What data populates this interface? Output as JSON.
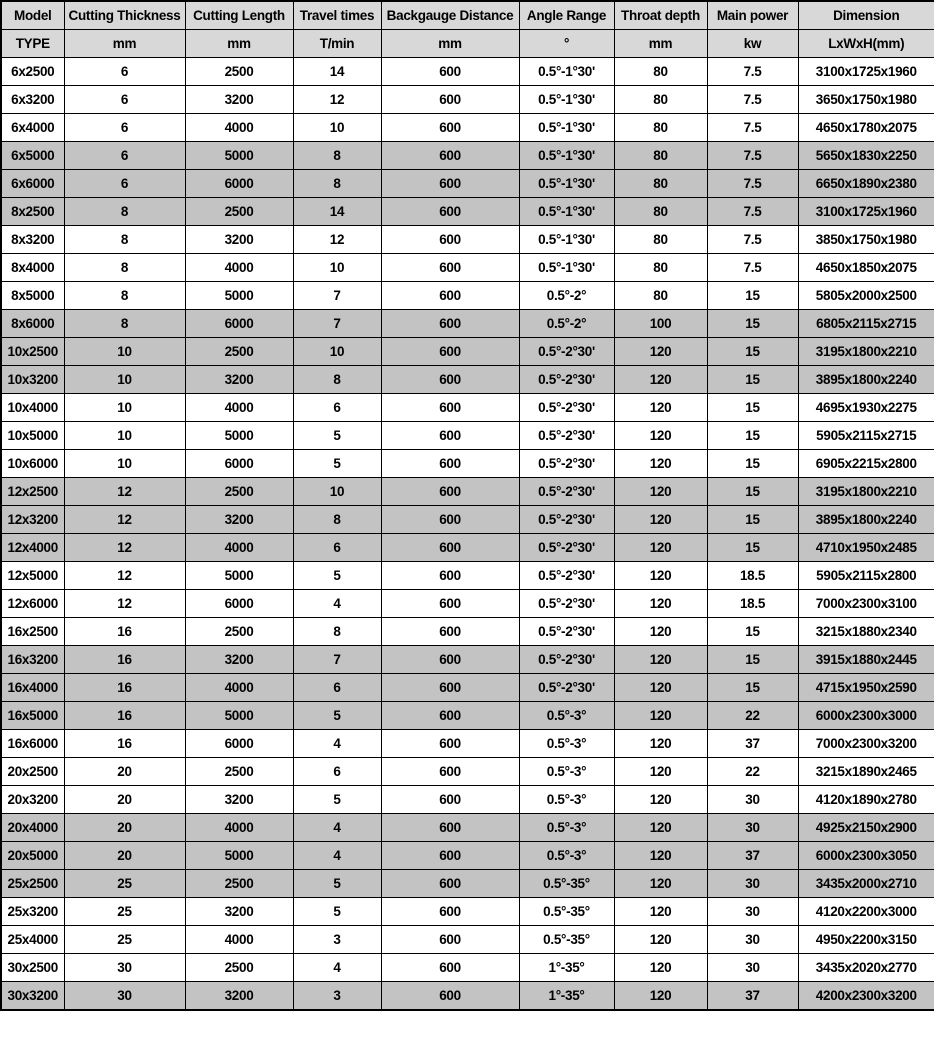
{
  "colors": {
    "header_bg": "#d8d8d8",
    "shaded_row_bg": "#c3c3c3",
    "plain_row_bg": "#ffffff",
    "border": "#000000",
    "text": "#000000"
  },
  "table": {
    "columns": [
      {
        "label": "Model",
        "unit": "TYPE"
      },
      {
        "label": "Cutting Thickness",
        "unit": "mm"
      },
      {
        "label": "Cutting Length",
        "unit": "mm"
      },
      {
        "label": "Travel times",
        "unit": "T/min"
      },
      {
        "label": "Backgauge Distance",
        "unit": "mm"
      },
      {
        "label": "Angle Range",
        "unit": "°"
      },
      {
        "label": "Throat depth",
        "unit": "mm"
      },
      {
        "label": "Main power",
        "unit": "kw"
      },
      {
        "label": "Dimension",
        "unit": "LxWxH(mm)"
      }
    ],
    "rows": [
      {
        "cells": [
          "6x2500",
          "6",
          "2500",
          "14",
          "600",
          "0.5°-1°30'",
          "80",
          "7.5",
          "3100x1725x1960"
        ],
        "shaded": false
      },
      {
        "cells": [
          "6x3200",
          "6",
          "3200",
          "12",
          "600",
          "0.5°-1°30'",
          "80",
          "7.5",
          "3650x1750x1980"
        ],
        "shaded": false
      },
      {
        "cells": [
          "6x4000",
          "6",
          "4000",
          "10",
          "600",
          "0.5°-1°30'",
          "80",
          "7.5",
          "4650x1780x2075"
        ],
        "shaded": false
      },
      {
        "cells": [
          "6x5000",
          "6",
          "5000",
          "8",
          "600",
          "0.5°-1°30'",
          "80",
          "7.5",
          "5650x1830x2250"
        ],
        "shaded": true
      },
      {
        "cells": [
          "6x6000",
          "6",
          "6000",
          "8",
          "600",
          "0.5°-1°30'",
          "80",
          "7.5",
          "6650x1890x2380"
        ],
        "shaded": true
      },
      {
        "cells": [
          "8x2500",
          "8",
          "2500",
          "14",
          "600",
          "0.5°-1°30'",
          "80",
          "7.5",
          "3100x1725x1960"
        ],
        "shaded": true
      },
      {
        "cells": [
          "8x3200",
          "8",
          "3200",
          "12",
          "600",
          "0.5°-1°30'",
          "80",
          "7.5",
          "3850x1750x1980"
        ],
        "shaded": false
      },
      {
        "cells": [
          "8x4000",
          "8",
          "4000",
          "10",
          "600",
          "0.5°-1°30'",
          "80",
          "7.5",
          "4650x1850x2075"
        ],
        "shaded": false
      },
      {
        "cells": [
          "8x5000",
          "8",
          "5000",
          "7",
          "600",
          "0.5°-2°",
          "80",
          "15",
          "5805x2000x2500"
        ],
        "shaded": false
      },
      {
        "cells": [
          "8x6000",
          "8",
          "6000",
          "7",
          "600",
          "0.5°-2°",
          "100",
          "15",
          "6805x2115x2715"
        ],
        "shaded": true
      },
      {
        "cells": [
          "10x2500",
          "10",
          "2500",
          "10",
          "600",
          "0.5°-2°30'",
          "120",
          "15",
          "3195x1800x2210"
        ],
        "shaded": true
      },
      {
        "cells": [
          "10x3200",
          "10",
          "3200",
          "8",
          "600",
          "0.5°-2°30'",
          "120",
          "15",
          "3895x1800x2240"
        ],
        "shaded": true
      },
      {
        "cells": [
          "10x4000",
          "10",
          "4000",
          "6",
          "600",
          "0.5°-2°30'",
          "120",
          "15",
          "4695x1930x2275"
        ],
        "shaded": false
      },
      {
        "cells": [
          "10x5000",
          "10",
          "5000",
          "5",
          "600",
          "0.5°-2°30'",
          "120",
          "15",
          "5905x2115x2715"
        ],
        "shaded": false
      },
      {
        "cells": [
          "10x6000",
          "10",
          "6000",
          "5",
          "600",
          "0.5°-2°30'",
          "120",
          "15",
          "6905x2215x2800"
        ],
        "shaded": false
      },
      {
        "cells": [
          "12x2500",
          "12",
          "2500",
          "10",
          "600",
          "0.5°-2°30'",
          "120",
          "15",
          "3195x1800x2210"
        ],
        "shaded": true
      },
      {
        "cells": [
          "12x3200",
          "12",
          "3200",
          "8",
          "600",
          "0.5°-2°30'",
          "120",
          "15",
          "3895x1800x2240"
        ],
        "shaded": true
      },
      {
        "cells": [
          "12x4000",
          "12",
          "4000",
          "6",
          "600",
          "0.5°-2°30'",
          "120",
          "15",
          "4710x1950x2485"
        ],
        "shaded": true
      },
      {
        "cells": [
          "12x5000",
          "12",
          "5000",
          "5",
          "600",
          "0.5°-2°30'",
          "120",
          "18.5",
          "5905x2115x2800"
        ],
        "shaded": false
      },
      {
        "cells": [
          "12x6000",
          "12",
          "6000",
          "4",
          "600",
          "0.5°-2°30'",
          "120",
          "18.5",
          "7000x2300x3100"
        ],
        "shaded": false
      },
      {
        "cells": [
          "16x2500",
          "16",
          "2500",
          "8",
          "600",
          "0.5°-2°30'",
          "120",
          "15",
          "3215x1880x2340"
        ],
        "shaded": false
      },
      {
        "cells": [
          "16x3200",
          "16",
          "3200",
          "7",
          "600",
          "0.5°-2°30'",
          "120",
          "15",
          "3915x1880x2445"
        ],
        "shaded": true
      },
      {
        "cells": [
          "16x4000",
          "16",
          "4000",
          "6",
          "600",
          "0.5°-2°30'",
          "120",
          "15",
          "4715x1950x2590"
        ],
        "shaded": true
      },
      {
        "cells": [
          "16x5000",
          "16",
          "5000",
          "5",
          "600",
          "0.5°-3°",
          "120",
          "22",
          "6000x2300x3000"
        ],
        "shaded": true
      },
      {
        "cells": [
          "16x6000",
          "16",
          "6000",
          "4",
          "600",
          "0.5°-3°",
          "120",
          "37",
          "7000x2300x3200"
        ],
        "shaded": false
      },
      {
        "cells": [
          "20x2500",
          "20",
          "2500",
          "6",
          "600",
          "0.5°-3°",
          "120",
          "22",
          "3215x1890x2465"
        ],
        "shaded": false
      },
      {
        "cells": [
          "20x3200",
          "20",
          "3200",
          "5",
          "600",
          "0.5°-3°",
          "120",
          "30",
          "4120x1890x2780"
        ],
        "shaded": false
      },
      {
        "cells": [
          "20x4000",
          "20",
          "4000",
          "4",
          "600",
          "0.5°-3°",
          "120",
          "30",
          "4925x2150x2900"
        ],
        "shaded": true
      },
      {
        "cells": [
          "20x5000",
          "20",
          "5000",
          "4",
          "600",
          "0.5°-3°",
          "120",
          "37",
          "6000x2300x3050"
        ],
        "shaded": true
      },
      {
        "cells": [
          "25x2500",
          "25",
          "2500",
          "5",
          "600",
          "0.5°-35°",
          "120",
          "30",
          "3435x2000x2710"
        ],
        "shaded": true
      },
      {
        "cells": [
          "25x3200",
          "25",
          "3200",
          "5",
          "600",
          "0.5°-35°",
          "120",
          "30",
          "4120x2200x3000"
        ],
        "shaded": false
      },
      {
        "cells": [
          "25x4000",
          "25",
          "4000",
          "3",
          "600",
          "0.5°-35°",
          "120",
          "30",
          "4950x2200x3150"
        ],
        "shaded": false
      },
      {
        "cells": [
          "30x2500",
          "30",
          "2500",
          "4",
          "600",
          "1°-35°",
          "120",
          "30",
          "3435x2020x2770"
        ],
        "shaded": false
      },
      {
        "cells": [
          "30x3200",
          "30",
          "3200",
          "3",
          "600",
          "1°-35°",
          "120",
          "37",
          "4200x2300x3200"
        ],
        "shaded": true
      }
    ]
  }
}
